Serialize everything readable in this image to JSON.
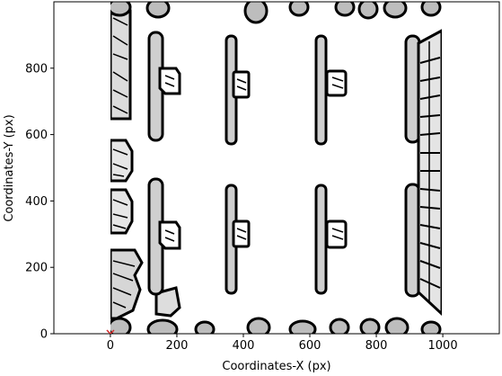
{
  "chart_data": {
    "type": "scatter",
    "xlabel": "Coordinates-X (px)",
    "ylabel": "Coordinates-Y (px)",
    "xlim": [
      -170,
      1170
    ],
    "ylim": [
      0,
      1000
    ],
    "x_ticks": [
      0,
      200,
      400,
      600,
      800,
      1000
    ],
    "y_ticks": [
      0,
      200,
      400,
      600,
      800
    ],
    "grid": false,
    "background_image": "edge-map-of-parking-lot-aerial-view",
    "series": [
      {
        "marker": "x",
        "color": "#d62728",
        "points": [
          {
            "x": 0,
            "y": 0
          }
        ]
      }
    ]
  },
  "colors": {
    "axes": "#000000",
    "background": "#ffffff",
    "marker": "#d62728"
  }
}
